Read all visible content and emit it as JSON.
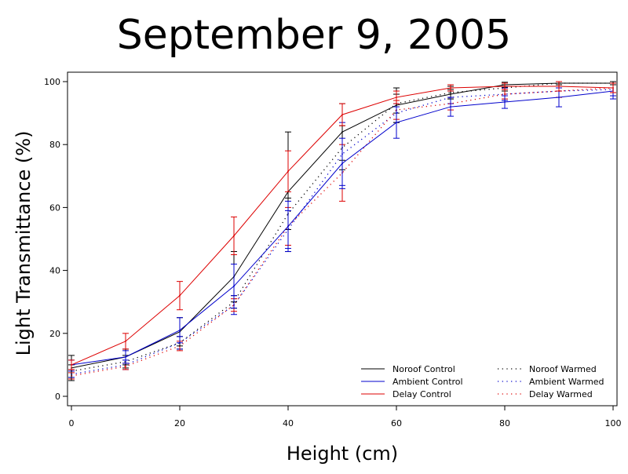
{
  "chart_data": {
    "type": "line",
    "title": "September 9, 2005",
    "xlabel": "Height (cm)",
    "ylabel": "Light Transmittance (%)",
    "xlim": [
      0,
      100
    ],
    "ylim": [
      0,
      100
    ],
    "xticks": [
      0,
      20,
      40,
      60,
      80,
      100
    ],
    "yticks": [
      0,
      20,
      40,
      60,
      80,
      100
    ],
    "grid": false,
    "legend_position": "bottom-right",
    "x": [
      0,
      10,
      20,
      30,
      40,
      50,
      60,
      70,
      80,
      90,
      100
    ],
    "series": [
      {
        "name": "Noroof Control",
        "color": "#000000",
        "dash": "solid",
        "values": [
          9,
          12.5,
          20.5,
          38,
          65,
          84,
          92.5,
          96,
          99,
          99.5,
          99.5
        ],
        "errors": [
          4,
          2.5,
          4.5,
          8,
          19,
          9,
          5.5,
          1.5,
          0.8,
          0.5,
          0.5
        ]
      },
      {
        "name": "Ambient Control",
        "color": "#0000cc",
        "dash": "solid",
        "values": [
          10,
          12.5,
          21,
          35,
          54,
          74,
          87,
          92,
          93.5,
          95,
          97
        ],
        "errors": [
          1.5,
          2,
          4,
          7,
          8,
          8,
          5,
          3,
          2,
          3,
          2.5
        ]
      },
      {
        "name": "Delay Control",
        "color": "#dd0000",
        "dash": "solid",
        "values": [
          10,
          17.5,
          32,
          51,
          71.5,
          89.5,
          95,
          98,
          98.5,
          98.5,
          98
        ],
        "errors": [
          1.5,
          2.5,
          4.5,
          6,
          6.5,
          3.5,
          2,
          1,
          1,
          1.5,
          1.5
        ]
      },
      {
        "name": "Noroof Warmed",
        "color": "#000000",
        "dash": "dotted",
        "values": [
          8,
          11,
          17,
          30,
          58,
          79,
          93,
          96.5,
          98,
          99.5,
          99.5
        ],
        "errors": [
          2,
          2,
          2,
          2,
          5,
          7,
          3,
          2,
          1,
          0.5,
          0.5
        ]
      },
      {
        "name": "Ambient Warmed",
        "color": "#0000cc",
        "dash": "dotted",
        "values": [
          7,
          10,
          17,
          29,
          53,
          77,
          90,
          95,
          96,
          97,
          97.5
        ],
        "errors": [
          1,
          1.5,
          2,
          3,
          6,
          10,
          3,
          2,
          2,
          2,
          2
        ]
      },
      {
        "name": "Delay Warmed",
        "color": "#dd0000",
        "dash": "dotted",
        "values": [
          6.5,
          9.5,
          16,
          29,
          54,
          71,
          91,
          93,
          96,
          97,
          98
        ],
        "errors": [
          1,
          1,
          1.5,
          2,
          6,
          9,
          3,
          2,
          1.5,
          2,
          1.5
        ]
      }
    ]
  }
}
